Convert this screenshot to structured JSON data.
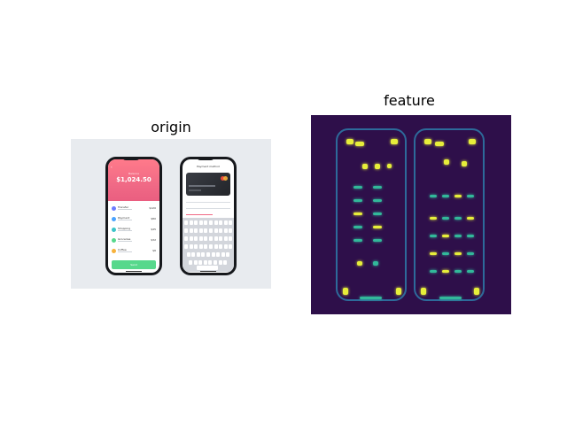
{
  "titles": {
    "origin": "origin",
    "feature": "feature"
  },
  "origin": {
    "left_phone": {
      "wallet_subtitle": "Balance",
      "wallet_amount": "$1,024.50",
      "transactions": [
        {
          "name": "Transfer",
          "amount": "$120",
          "color": "#6b7cff"
        },
        {
          "name": "Payment",
          "amount": "$80",
          "color": "#4aa3ff"
        },
        {
          "name": "Shopping",
          "amount": "$45",
          "color": "#3cc4c9"
        },
        {
          "name": "Groceries",
          "amount": "$32",
          "color": "#57d88c"
        },
        {
          "name": "Coffee",
          "amount": "$6",
          "color": "#f7b23b"
        }
      ],
      "button_label": "Send"
    },
    "right_phone": {
      "title": "Payment method"
    }
  },
  "colors": {
    "origin_background": "#e8ebef",
    "feature_background": "#2e0f4a",
    "feature_outline": "#2d6a9a",
    "feature_hot": "#e7ee3a",
    "feature_warm": "#32b89a"
  }
}
